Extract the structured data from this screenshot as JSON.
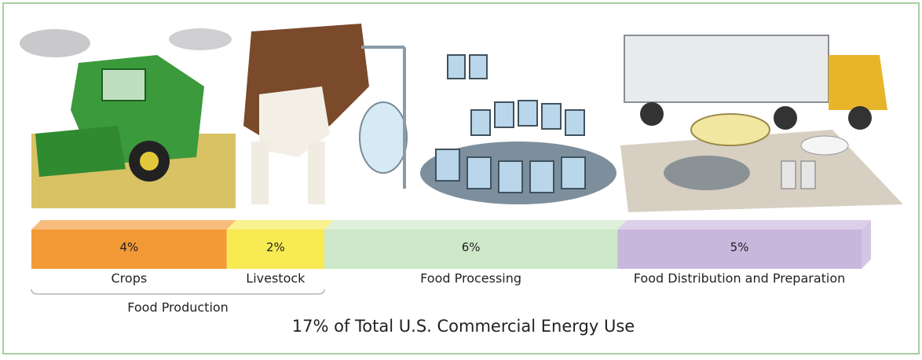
{
  "chart_data": {
    "type": "bar",
    "orientation": "horizontal",
    "stacked": true,
    "title": "17% of Total U.S. Commercial Energy Use",
    "categories": [
      "Crops",
      "Livestock",
      "Food Processing",
      "Food Distribution and Preparation"
    ],
    "values": [
      4,
      2,
      6,
      5
    ],
    "value_labels": [
      "4%",
      "2%",
      "6%",
      "5%"
    ],
    "colors": [
      "#f29a36",
      "#f7ea52",
      "#cde8c8",
      "#c9b6dd"
    ],
    "annotations": [
      "Food Production"
    ]
  }
}
